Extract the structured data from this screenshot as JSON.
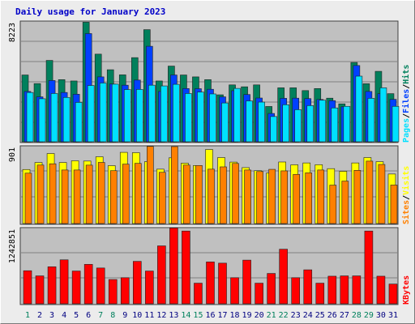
{
  "chart_data": [
    {
      "type": "bar",
      "title": "Daily usage for January 2023",
      "top_tick_label": "8223",
      "legend": [
        "Pages",
        "Files",
        "Hits"
      ],
      "legend_colors": {
        "Pages": "#00e0ff",
        "Files": "#0040ff",
        "Hits": "#00805c"
      },
      "legend_separator": "/",
      "ylim": [
        0,
        8223
      ],
      "categories": [
        "1",
        "2",
        "3",
        "4",
        "5",
        "6",
        "7",
        "8",
        "9",
        "10",
        "11",
        "12",
        "13",
        "14",
        "15",
        "16",
        "17",
        "18",
        "19",
        "20",
        "21",
        "22",
        "23",
        "24",
        "25",
        "26",
        "27",
        "28",
        "29",
        "30",
        "31"
      ],
      "series": [
        {
          "name": "Hits",
          "color": "#00805c",
          "values": [
            4580,
            3990,
            5580,
            4260,
            4170,
            8200,
            6010,
            4940,
            4590,
            5770,
            7690,
            4170,
            5190,
            4580,
            4450,
            4260,
            3220,
            3900,
            3770,
            3900,
            2420,
            3700,
            3700,
            3510,
            3650,
            2990,
            2600,
            5440,
            3980,
            4830,
            3300
          ]
        },
        {
          "name": "Files",
          "color": "#0040ff",
          "values": [
            3450,
            3080,
            4200,
            3380,
            3260,
            7420,
            4450,
            3960,
            3880,
            4230,
            6550,
            3450,
            4580,
            3650,
            3640,
            3600,
            3080,
            3500,
            3240,
            3000,
            1940,
            2980,
            2990,
            2960,
            2900,
            2820,
            2400,
            5230,
            3450,
            3300,
            2910
          ]
        },
        {
          "name": "Pages",
          "color": "#00e0ff",
          "values": [
            3380,
            2950,
            3310,
            3040,
            2700,
            3860,
            4030,
            3950,
            3580,
            3590,
            3880,
            3830,
            3940,
            3310,
            3410,
            3280,
            2660,
            3660,
            2800,
            2720,
            1730,
            2540,
            2200,
            2480,
            2850,
            2320,
            2430,
            4500,
            2980,
            3700,
            2430
          ]
        }
      ]
    },
    {
      "type": "bar",
      "top_tick_label": "901",
      "legend": [
        "Sites",
        "Visits"
      ],
      "legend_colors": {
        "Sites": "#ff8000",
        "Visits": "#ffff00"
      },
      "legend_separator": "/",
      "ylim": [
        0,
        901
      ],
      "categories": [
        "1",
        "2",
        "3",
        "4",
        "5",
        "6",
        "7",
        "8",
        "9",
        "10",
        "11",
        "12",
        "13",
        "14",
        "15",
        "16",
        "17",
        "18",
        "19",
        "20",
        "21",
        "22",
        "23",
        "24",
        "25",
        "26",
        "27",
        "28",
        "29",
        "30",
        "31"
      ],
      "series": [
        {
          "name": "Visits",
          "color": "#ffff00",
          "values": [
            633,
            715,
            820,
            715,
            735,
            732,
            782,
            678,
            834,
            830,
            725,
            637,
            770,
            707,
            680,
            867,
            773,
            720,
            655,
            619,
            593,
            721,
            688,
            710,
            689,
            643,
            612,
            710,
            773,
            725,
            580
          ]
        },
        {
          "name": "Sites",
          "color": "#ff8000",
          "values": [
            590,
            685,
            700,
            627,
            627,
            684,
            716,
            619,
            696,
            705,
            903,
            600,
            901,
            685,
            680,
            637,
            664,
            704,
            627,
            609,
            635,
            617,
            576,
            594,
            627,
            450,
            497,
            623,
            731,
            692,
            451
          ]
        }
      ]
    },
    {
      "type": "bar",
      "top_tick_label": "1242851",
      "legend": [
        "KBytes"
      ],
      "legend_colors": {
        "KBytes": "#ff0000"
      },
      "ylim": [
        0,
        1242851
      ],
      "categories": [
        "1",
        "2",
        "3",
        "4",
        "5",
        "6",
        "7",
        "8",
        "9",
        "10",
        "11",
        "12",
        "13",
        "14",
        "15",
        "16",
        "17",
        "18",
        "19",
        "20",
        "21",
        "22",
        "23",
        "24",
        "25",
        "26",
        "27",
        "28",
        "29",
        "30",
        "31"
      ],
      "weekend_days": [
        "1",
        "7",
        "8",
        "14",
        "15",
        "21",
        "22",
        "28",
        "29"
      ],
      "series": [
        {
          "name": "KBytes",
          "color": "#ff0000",
          "values": [
            545000,
            460000,
            610000,
            725000,
            540000,
            650000,
            590000,
            400000,
            430000,
            700000,
            540000,
            955000,
            1250000,
            1200000,
            340000,
            690000,
            670000,
            430000,
            720000,
            340000,
            500000,
            900000,
            430000,
            560000,
            340000,
            455000,
            460000,
            460000,
            1200000,
            455000,
            325000
          ]
        }
      ]
    }
  ]
}
